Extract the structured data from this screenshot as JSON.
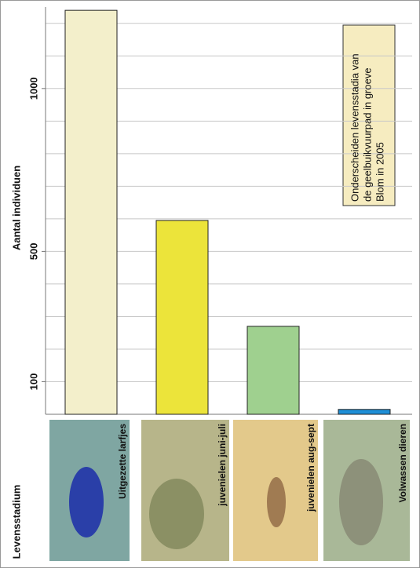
{
  "chart_data": {
    "type": "bar",
    "ylabel": "Aantal individuen",
    "xlabel": "Levensstadium",
    "annotation": [
      "Onderscheiden levensstadia van",
      "de geelbuikvuurpad in groeve",
      "Blom in 2005"
    ],
    "categories": [
      "Uitgezette larfjes",
      "juvenielen juni-juli",
      "juvenielen aug-sept",
      "Volwassen dieren"
    ],
    "values": [
      1240,
      595,
      270,
      15
    ],
    "colors": [
      "#f3efcb",
      "#ece43a",
      "#9fd08f",
      "#1f8fd6"
    ],
    "ylim": [
      0,
      1250
    ],
    "yticks": [
      100,
      500,
      1000
    ],
    "grid_lines": [
      100,
      200,
      300,
      400,
      500,
      600,
      700,
      800,
      900,
      1000,
      1100,
      1200
    ],
    "grid": true
  }
}
